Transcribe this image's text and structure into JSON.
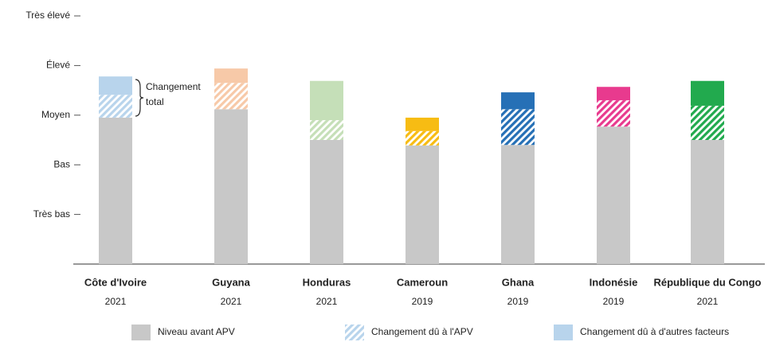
{
  "chart_data": {
    "type": "stacked_bar",
    "categories": [
      "Côte d'Ivoire",
      "Guyana",
      "Honduras",
      "Cameroun",
      "Ghana",
      "Indonésie",
      "République du Congo"
    ],
    "years": [
      "2021",
      "2021",
      "2021",
      "2019",
      "2019",
      "2019",
      "2021"
    ],
    "ylim": [
      0,
      5
    ],
    "yticks": [
      {
        "value": 1,
        "label": "Très bas"
      },
      {
        "value": 2,
        "label": "Bas"
      },
      {
        "value": 3,
        "label": "Moyen"
      },
      {
        "value": 4,
        "label": "Élevé"
      },
      {
        "value": 5,
        "label": "Très élevé"
      }
    ],
    "series": [
      {
        "name": "Niveau avant APV",
        "color": "#c8c8c8",
        "style": "solid",
        "colors": [
          "#c8c8c8",
          "#c8c8c8",
          "#c8c8c8",
          "#c8c8c8",
          "#c8c8c8",
          "#c8c8c8",
          "#c8c8c8"
        ],
        "values": [
          2.95,
          3.12,
          2.5,
          2.39,
          2.4,
          2.77,
          2.5
        ]
      },
      {
        "name": "Changement dû à l'APV",
        "color": "#b8d4ec",
        "style": "hatched",
        "colors": [
          "#b8d4ec",
          "#f7c9a8",
          "#c5dfb8",
          "#f7bc13",
          "#2670b6",
          "#e83a8e",
          "#22aa4e"
        ],
        "values": [
          0.46,
          0.53,
          0.4,
          0.29,
          0.72,
          0.53,
          0.69
        ]
      },
      {
        "name": "Changement dû à d'autres facteurs",
        "color": "#b8d4ec",
        "style": "solid",
        "colors": [
          "#b8d4ec",
          "#f7c9a8",
          "#c5dfb8",
          "#f7bc13",
          "#2670b6",
          "#e83a8e",
          "#22aa4e"
        ],
        "values": [
          0.37,
          0.29,
          0.79,
          0.27,
          0.34,
          0.27,
          0.5
        ]
      }
    ],
    "annotation": [
      "Changement",
      "total"
    ]
  }
}
